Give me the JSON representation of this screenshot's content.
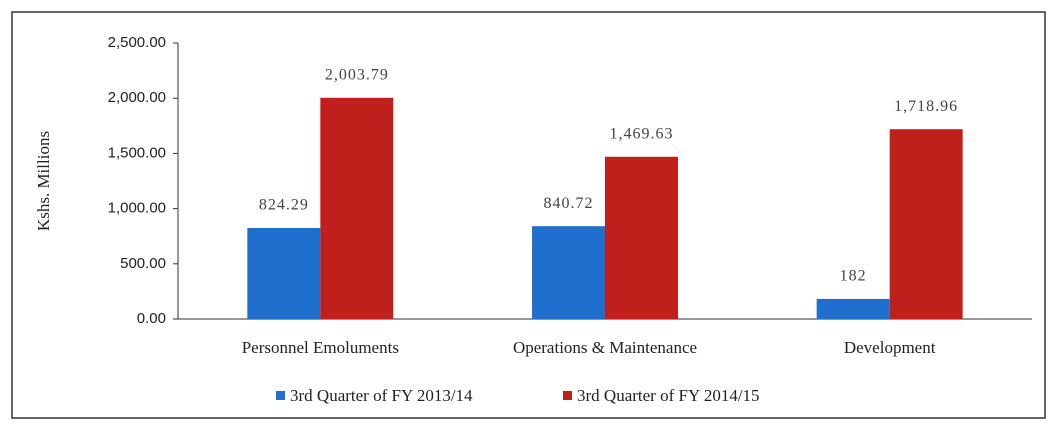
{
  "chart_data": {
    "type": "bar",
    "y_label": "Kshs. Millions",
    "categories": [
      "Personnel Emoluments",
      "Operations & Maintenance",
      "Development"
    ],
    "series": [
      {
        "name": "3rd Quarter of FY 2013/14",
        "color": "#1f6fce",
        "values": [
          824.29,
          840.72,
          182
        ]
      },
      {
        "name": "3rd Quarter of FY 2014/15",
        "color": "#c0201c",
        "values": [
          2003.79,
          1469.63,
          1718.96
        ],
        "value_labels": [
          "2,003.79",
          "1,469.63",
          "1,718.96"
        ]
      }
    ],
    "ylim": [
      0,
      2500
    ],
    "yticks": [
      {
        "value": 0,
        "label": "0.00"
      },
      {
        "value": 500,
        "label": "500.00"
      },
      {
        "value": 1000,
        "label": "1,000.00"
      },
      {
        "value": 1500,
        "label": "1,500.00"
      },
      {
        "value": 2000,
        "label": "2,000.00"
      },
      {
        "value": 2500,
        "label": "2,500.00"
      }
    ],
    "grid": false,
    "legend": "bottom"
  }
}
